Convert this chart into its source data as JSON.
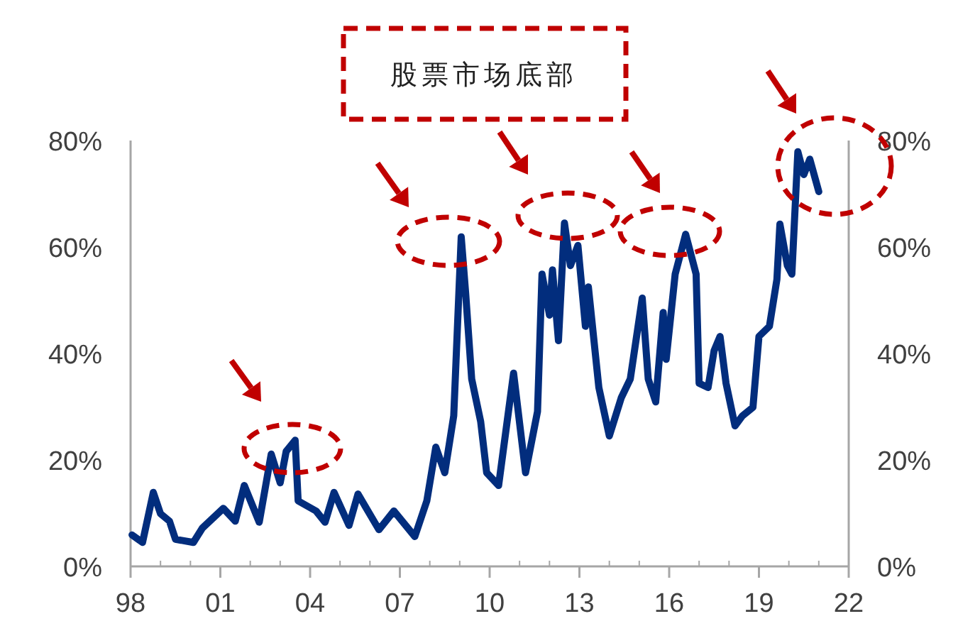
{
  "chart_data": {
    "type": "line",
    "annotations": [
      "股票市场底部"
    ],
    "xlim": [
      1998,
      2022
    ],
    "xticks": [
      {
        "value": 1998,
        "label": "98"
      },
      {
        "value": 1999,
        "label": null
      },
      {
        "value": 2000,
        "label": null
      },
      {
        "value": 2001,
        "label": "01"
      },
      {
        "value": 2002,
        "label": null
      },
      {
        "value": 2003,
        "label": null
      },
      {
        "value": 2004,
        "label": "04"
      },
      {
        "value": 2005,
        "label": null
      },
      {
        "value": 2006,
        "label": null
      },
      {
        "value": 2007,
        "label": "07"
      },
      {
        "value": 2008,
        "label": null
      },
      {
        "value": 2009,
        "label": null
      },
      {
        "value": 2010,
        "label": "10"
      },
      {
        "value": 2011,
        "label": null
      },
      {
        "value": 2012,
        "label": null
      },
      {
        "value": 2013,
        "label": "13"
      },
      {
        "value": 2014,
        "label": null
      },
      {
        "value": 2015,
        "label": null
      },
      {
        "value": 2016,
        "label": "16"
      },
      {
        "value": 2017,
        "label": null
      },
      {
        "value": 2018,
        "label": null
      },
      {
        "value": 2019,
        "label": "19"
      },
      {
        "value": 2020,
        "label": null
      },
      {
        "value": 2021,
        "label": null
      },
      {
        "value": 2022,
        "label": "22"
      }
    ],
    "ylim": [
      0,
      80
    ],
    "yticks": [
      {
        "value": 0,
        "label": "0%"
      },
      {
        "value": 20,
        "label": "20%"
      },
      {
        "value": 40,
        "label": "40%"
      },
      {
        "value": 60,
        "label": "60%"
      },
      {
        "value": 80,
        "label": "80%"
      }
    ],
    "y2lim": [
      0,
      80
    ],
    "y2ticks": [
      {
        "value": 0,
        "label": "0%"
      },
      {
        "value": 20,
        "label": "20%"
      },
      {
        "value": 40,
        "label": "40%"
      },
      {
        "value": 60,
        "label": "60%"
      },
      {
        "value": 80,
        "label": "80%"
      }
    ],
    "grid": false,
    "series": [
      {
        "color": "#022d7d",
        "x": [
          1998.05,
          1998.4,
          1998.76,
          1999.0,
          1999.3,
          1999.5,
          2000.1,
          2000.4,
          2001.1,
          2001.5,
          2001.8,
          2002.3,
          2002.7,
          2003.0,
          2003.2,
          2003.5,
          2003.6,
          2004.2,
          2004.5,
          2004.8,
          2005.3,
          2005.6,
          2006.3,
          2006.8,
          2007.5,
          2007.9,
          2008.2,
          2008.5,
          2008.8,
          2009.05,
          2009.2,
          2009.4,
          2009.7,
          2009.9,
          2010.3,
          2010.8,
          2011.2,
          2011.6,
          2011.75,
          2012.0,
          2012.1,
          2012.3,
          2012.5,
          2012.7,
          2012.95,
          2013.2,
          2013.3,
          2013.65,
          2014.0,
          2014.4,
          2014.7,
          2015.1,
          2015.3,
          2015.55,
          2015.8,
          2015.9,
          2016.2,
          2016.55,
          2016.9,
          2017.0,
          2017.3,
          2017.5,
          2017.7,
          2017.9,
          2018.2,
          2018.45,
          2018.8,
          2019.0,
          2019.35,
          2019.6,
          2019.7,
          2019.95,
          2020.1,
          2020.3,
          2020.5,
          2020.7,
          2021.0
        ],
        "values": [
          5.9,
          4.5,
          13.9,
          9.9,
          8.5,
          5.1,
          4.5,
          7.2,
          10.9,
          8.5,
          15.2,
          8.3,
          21.1,
          15.7,
          21.6,
          23.7,
          12.3,
          10.4,
          8.3,
          13.9,
          7.7,
          13.6,
          6.9,
          10.4,
          5.6,
          12.3,
          22.4,
          17.6,
          28.3,
          61.9,
          51.2,
          35.2,
          27.2,
          17.6,
          15.2,
          36.3,
          17.6,
          29.1,
          54.9,
          47.2,
          55.7,
          42.4,
          64.5,
          56.5,
          60.3,
          45.1,
          52.5,
          33.6,
          24.5,
          31.7,
          35.2,
          50.4,
          35.2,
          30.9,
          47.7,
          38.9,
          54.9,
          62.4,
          54.9,
          34.4,
          33.6,
          40.5,
          43.2,
          34.4,
          26.4,
          28.3,
          29.9,
          43.2,
          45.1,
          53.9,
          64.3,
          56.5,
          54.9,
          77.9,
          73.6,
          76.5,
          70.4
        ]
      }
    ]
  }
}
